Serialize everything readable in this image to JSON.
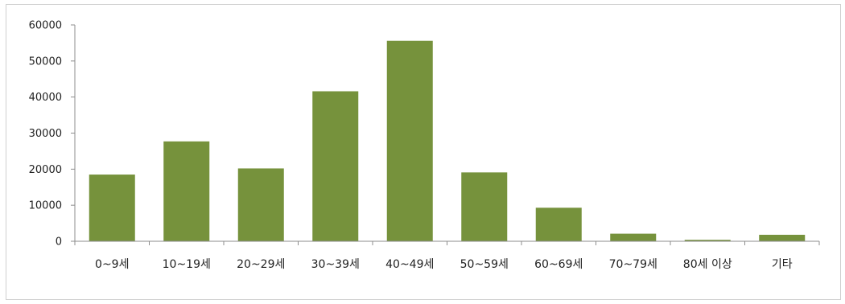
{
  "chart_data": {
    "type": "bar",
    "title": "",
    "xlabel": "",
    "ylabel": "",
    "categories": [
      "0~9세",
      "10~19세",
      "20~29세",
      "30~39세",
      "40~49세",
      "50~59세",
      "60~69세",
      "70~79세",
      "80세 이상",
      "기타"
    ],
    "values": [
      18500,
      27700,
      20200,
      41600,
      55600,
      19100,
      9300,
      2100,
      400,
      1800
    ],
    "ylim": [
      0,
      60000
    ],
    "yticks": [
      "0",
      "10000",
      "20000",
      "30000",
      "40000",
      "50000",
      "60000"
    ],
    "grid": false,
    "legend": "none",
    "bar_color": "#76923c"
  }
}
